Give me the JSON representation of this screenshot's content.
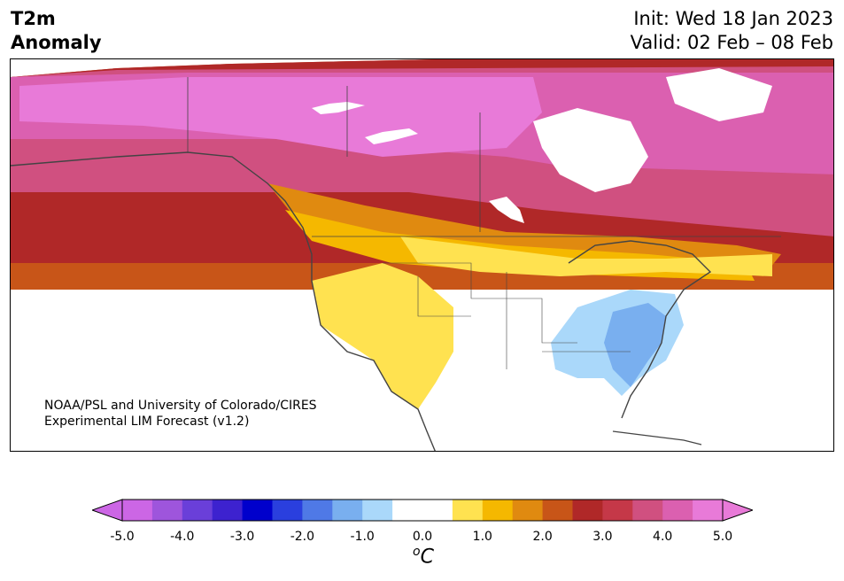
{
  "title": {
    "line1": "T2m",
    "line2": "Anomaly"
  },
  "init": "Init: Wed 18 Jan 2023",
  "valid": "Valid: 02 Feb – 08 Feb",
  "credit": {
    "line1": "NOAA/PSL and University of Colorado/CIRES",
    "line2": "Experimental LIM Forecast (v1.2)"
  },
  "colorbar": {
    "colors": [
      "#cc66e5",
      "#9e55dc",
      "#6a3fd9",
      "#3d22cf",
      "#0000cc",
      "#2a3fde",
      "#4f79e6",
      "#79afef",
      "#aad8fa",
      "#ffffff",
      "#ffffff",
      "#ffe250",
      "#f5b800",
      "#e08a10",
      "#c85518",
      "#b02828",
      "#c53848",
      "#d05080",
      "#db60b0",
      "#e87ad8"
    ],
    "min_color": "#cc66e5",
    "max_color": "#e87ad8",
    "ticks": [
      "-5.0",
      "-4.0",
      "-3.0",
      "-2.0",
      "-1.0",
      "0.0",
      "1.0",
      "2.0",
      "3.0",
      "4.0",
      "5.0"
    ],
    "unit": "C",
    "unit_prefix": "o"
  }
}
